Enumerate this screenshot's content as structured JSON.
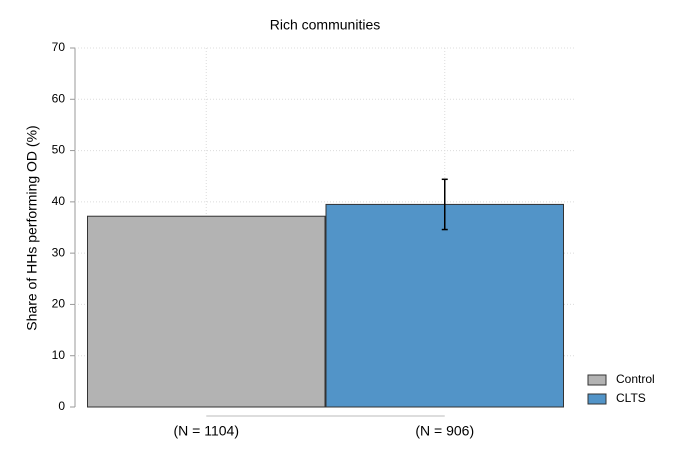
{
  "chart_data": {
    "type": "bar",
    "title": "Rich communities",
    "y_label": "Share of HHs performing OD (%)",
    "categories": [
      "(N = 1104)",
      "(N = 906)"
    ],
    "series": [
      {
        "name": "Control",
        "color": "#b3b3b3",
        "values": [
          37.2,
          null
        ]
      },
      {
        "name": "CLTS",
        "color": "#5294c8",
        "values": [
          null,
          39.5
        ],
        "errors": [
          null,
          4.9
        ]
      }
    ],
    "ylim": [
      0,
      70
    ],
    "yticks": [
      0,
      10,
      20,
      30,
      40,
      50,
      60,
      70
    ],
    "grid": true,
    "legend": "lower right"
  }
}
